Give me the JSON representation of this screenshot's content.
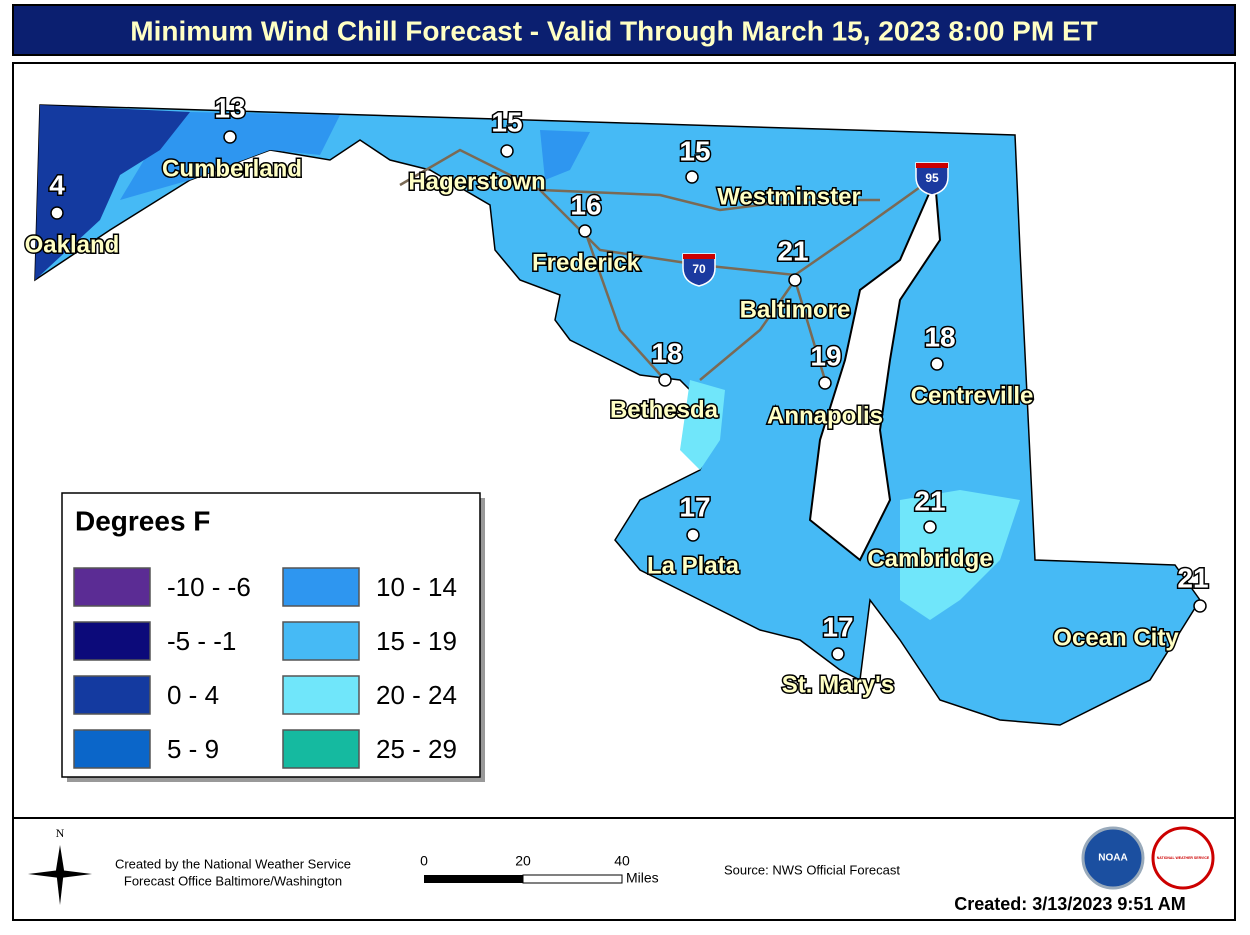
{
  "title": "Minimum Wind Chill Forecast - Valid Through March 15, 2023 8:00 PM ET",
  "cities": [
    {
      "name": "Oakland",
      "value": 4
    },
    {
      "name": "Cumberland",
      "value": 13
    },
    {
      "name": "Hagerstown",
      "value": 15
    },
    {
      "name": "Westminster",
      "value": 15
    },
    {
      "name": "Frederick",
      "value": 16
    },
    {
      "name": "Baltimore",
      "value": 21
    },
    {
      "name": "Bethesda",
      "value": 18
    },
    {
      "name": "Annapolis",
      "value": 19
    },
    {
      "name": "Centreville",
      "value": 18
    },
    {
      "name": "La Plata",
      "value": 17
    },
    {
      "name": "Cambridge",
      "value": 21
    },
    {
      "name": "St. Mary's",
      "value": 17
    },
    {
      "name": "Ocean City",
      "value": 21
    }
  ],
  "interstates": [
    "95",
    "70"
  ],
  "legend": {
    "title": "Degrees F",
    "items": [
      {
        "label": "-10 - -6",
        "color": "#5b2c94"
      },
      {
        "label": "-5 - -1",
        "color": "#0c0a7a"
      },
      {
        "label": "0 - 4",
        "color": "#143aa0"
      },
      {
        "label": "5 - 9",
        "color": "#0b66c9"
      },
      {
        "label": "10 - 14",
        "color": "#2e96f0"
      },
      {
        "label": "15 - 19",
        "color": "#46baf5"
      },
      {
        "label": "20 - 24",
        "color": "#70e6fa"
      },
      {
        "label": "25 - 29",
        "color": "#15baa0"
      }
    ]
  },
  "footer": {
    "compass": "N",
    "credit": [
      "Created by the National Weather Service",
      "Forecast Office Baltimore/Washington"
    ],
    "scale": {
      "ticks": [
        0,
        20,
        40
      ],
      "unit": "Miles"
    },
    "source": "Source: NWS Official Forecast",
    "created": "Created: 3/13/2023 9:51 AM",
    "logos": [
      "NOAA",
      "NATIONAL WEATHER SERVICE"
    ]
  }
}
